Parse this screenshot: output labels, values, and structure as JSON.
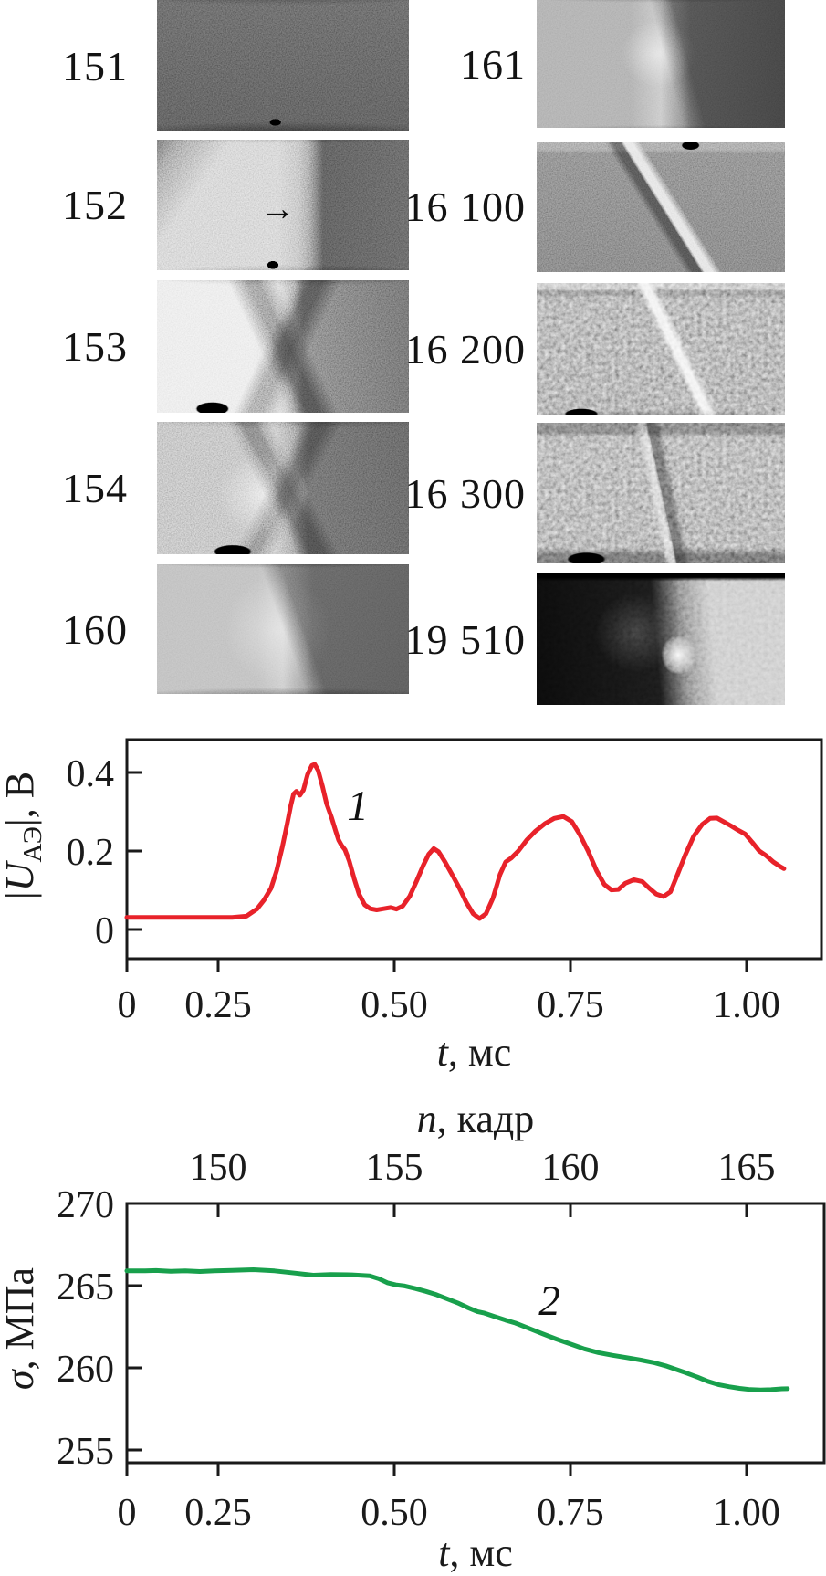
{
  "figure": {
    "frames": {
      "left": [
        {
          "label": "151"
        },
        {
          "label": "152"
        },
        {
          "label": "153"
        },
        {
          "label": "154"
        },
        {
          "label": "160"
        }
      ],
      "right": [
        {
          "label": "161"
        },
        {
          "label": "16 100"
        },
        {
          "label": "16 200"
        },
        {
          "label": "16 300"
        },
        {
          "label": "19 510"
        }
      ],
      "arrow_char": "→",
      "arrow_frame": "152"
    },
    "colors": {
      "ae_curve": "#e8222a",
      "stress_curve": "#18a04c",
      "axis": "#1a1a1a"
    }
  },
  "chart_data": [
    {
      "type": "line",
      "name": "acoustic-emission-signal",
      "curve_label": "1",
      "color": "#e8222a",
      "ylabel": "|U_АЭ|, В",
      "ylabel_parts": {
        "pre": "|",
        "var": "U",
        "sub": "АЭ",
        "post": "|, В"
      },
      "xlabel": "t, мс",
      "xlabel_parts": {
        "var": "t",
        "post": ", мс"
      },
      "xlim": [
        0,
        1.105
      ],
      "ylim": [
        -0.075,
        0.48
      ],
      "grid": false,
      "legend": "none",
      "xticks": [
        {
          "v": 0,
          "label": "0"
        },
        {
          "v": 0.25,
          "label": "0.25"
        },
        {
          "v": 0.5,
          "label": "0.50"
        },
        {
          "v": 0.75,
          "label": "0.75"
        },
        {
          "v": 1.0,
          "label": "1.00"
        }
      ],
      "yticks": [
        {
          "v": 0,
          "label": "0"
        },
        {
          "v": 0.2,
          "label": "0.2"
        },
        {
          "v": 0.4,
          "label": "0.4"
        }
      ],
      "points": [
        [
          0,
          0.031
        ],
        [
          0.05,
          0.031
        ],
        [
          0.1,
          0.031
        ],
        [
          0.15,
          0.031
        ],
        [
          0.2,
          0.031
        ],
        [
          0.25,
          0.031
        ],
        [
          0.27,
          0.031
        ],
        [
          0.29,
          0.034
        ],
        [
          0.305,
          0.052
        ],
        [
          0.315,
          0.075
        ],
        [
          0.325,
          0.105
        ],
        [
          0.333,
          0.15
        ],
        [
          0.341,
          0.21
        ],
        [
          0.348,
          0.27
        ],
        [
          0.353,
          0.315
        ],
        [
          0.357,
          0.345
        ],
        [
          0.361,
          0.352
        ],
        [
          0.366,
          0.342
        ],
        [
          0.371,
          0.355
        ],
        [
          0.377,
          0.395
        ],
        [
          0.383,
          0.418
        ],
        [
          0.387,
          0.421
        ],
        [
          0.392,
          0.405
        ],
        [
          0.398,
          0.365
        ],
        [
          0.404,
          0.32
        ],
        [
          0.411,
          0.285
        ],
        [
          0.417,
          0.25
        ],
        [
          0.421,
          0.228
        ],
        [
          0.425,
          0.215
        ],
        [
          0.43,
          0.203
        ],
        [
          0.436,
          0.175
        ],
        [
          0.443,
          0.13
        ],
        [
          0.45,
          0.09
        ],
        [
          0.458,
          0.063
        ],
        [
          0.466,
          0.053
        ],
        [
          0.475,
          0.05
        ],
        [
          0.485,
          0.053
        ],
        [
          0.495,
          0.056
        ],
        [
          0.503,
          0.052
        ],
        [
          0.512,
          0.06
        ],
        [
          0.522,
          0.085
        ],
        [
          0.532,
          0.125
        ],
        [
          0.541,
          0.163
        ],
        [
          0.549,
          0.192
        ],
        [
          0.556,
          0.206
        ],
        [
          0.563,
          0.198
        ],
        [
          0.572,
          0.172
        ],
        [
          0.582,
          0.14
        ],
        [
          0.592,
          0.107
        ],
        [
          0.602,
          0.07
        ],
        [
          0.612,
          0.04
        ],
        [
          0.621,
          0.028
        ],
        [
          0.63,
          0.04
        ],
        [
          0.64,
          0.08
        ],
        [
          0.65,
          0.14
        ],
        [
          0.658,
          0.172
        ],
        [
          0.666,
          0.182
        ],
        [
          0.676,
          0.2
        ],
        [
          0.688,
          0.228
        ],
        [
          0.7,
          0.25
        ],
        [
          0.714,
          0.27
        ],
        [
          0.727,
          0.283
        ],
        [
          0.74,
          0.288
        ],
        [
          0.752,
          0.275
        ],
        [
          0.763,
          0.243
        ],
        [
          0.775,
          0.2
        ],
        [
          0.787,
          0.15
        ],
        [
          0.798,
          0.115
        ],
        [
          0.808,
          0.101
        ],
        [
          0.818,
          0.102
        ],
        [
          0.828,
          0.118
        ],
        [
          0.84,
          0.127
        ],
        [
          0.852,
          0.122
        ],
        [
          0.862,
          0.105
        ],
        [
          0.872,
          0.09
        ],
        [
          0.882,
          0.084
        ],
        [
          0.892,
          0.096
        ],
        [
          0.902,
          0.14
        ],
        [
          0.913,
          0.19
        ],
        [
          0.925,
          0.238
        ],
        [
          0.937,
          0.268
        ],
        [
          0.948,
          0.283
        ],
        [
          0.958,
          0.284
        ],
        [
          0.968,
          0.274
        ],
        [
          0.978,
          0.264
        ],
        [
          0.988,
          0.253
        ],
        [
          0.998,
          0.243
        ],
        [
          1.008,
          0.222
        ],
        [
          1.018,
          0.2
        ],
        [
          1.028,
          0.188
        ],
        [
          1.038,
          0.172
        ],
        [
          1.048,
          0.16
        ],
        [
          1.053,
          0.155
        ]
      ]
    },
    {
      "type": "line",
      "name": "stress",
      "curve_label": "2",
      "color": "#18a04c",
      "ylabel": "σ, МПа",
      "ylabel_parts": {
        "var": "σ",
        "post": ", МПа"
      },
      "xlabel": "t, мс",
      "xlabel_parts": {
        "var": "t",
        "post": ", мс"
      },
      "top_axis": {
        "label": "n, кадр",
        "label_parts": {
          "var": "n",
          "post": ", кадр"
        },
        "ticks": [
          {
            "n": 150,
            "label": "150"
          },
          {
            "n": 155,
            "label": "155"
          },
          {
            "n": 160,
            "label": "160"
          },
          {
            "n": 165,
            "label": "165"
          }
        ]
      },
      "xlim": [
        0,
        1.105
      ],
      "ylim": [
        254.2,
        270
      ],
      "grid": false,
      "legend": "none",
      "xticks": [
        {
          "v": 0,
          "label": "0"
        },
        {
          "v": 0.25,
          "label": "0.25"
        },
        {
          "v": 0.5,
          "label": "0.50"
        },
        {
          "v": 0.75,
          "label": "0.75"
        },
        {
          "v": 1.0,
          "label": "1.00"
        }
      ],
      "yticks": [
        {
          "v": 255,
          "label": "255"
        },
        {
          "v": 260,
          "label": "260"
        },
        {
          "v": 265,
          "label": "265"
        },
        {
          "v": 270,
          "label": "270"
        }
      ],
      "points": [
        [
          0,
          265.9
        ],
        [
          0.05,
          265.9
        ],
        [
          0.08,
          265.92
        ],
        [
          0.12,
          265.88
        ],
        [
          0.16,
          265.9
        ],
        [
          0.2,
          265.86
        ],
        [
          0.24,
          265.9
        ],
        [
          0.27,
          265.93
        ],
        [
          0.3,
          265.97
        ],
        [
          0.33,
          265.9
        ],
        [
          0.36,
          265.76
        ],
        [
          0.385,
          265.64
        ],
        [
          0.41,
          265.68
        ],
        [
          0.44,
          265.66
        ],
        [
          0.465,
          265.6
        ],
        [
          0.478,
          265.42
        ],
        [
          0.49,
          265.18
        ],
        [
          0.502,
          265.05
        ],
        [
          0.515,
          264.98
        ],
        [
          0.53,
          264.82
        ],
        [
          0.545,
          264.65
        ],
        [
          0.56,
          264.45
        ],
        [
          0.575,
          264.2
        ],
        [
          0.59,
          263.95
        ],
        [
          0.605,
          263.65
        ],
        [
          0.618,
          263.42
        ],
        [
          0.628,
          263.33
        ],
        [
          0.642,
          263.12
        ],
        [
          0.658,
          262.9
        ],
        [
          0.672,
          262.72
        ],
        [
          0.69,
          262.42
        ],
        [
          0.71,
          262.08
        ],
        [
          0.73,
          261.75
        ],
        [
          0.75,
          261.45
        ],
        [
          0.77,
          261.15
        ],
        [
          0.79,
          260.92
        ],
        [
          0.81,
          260.76
        ],
        [
          0.83,
          260.62
        ],
        [
          0.85,
          260.47
        ],
        [
          0.87,
          260.3
        ],
        [
          0.885,
          260.12
        ],
        [
          0.9,
          259.9
        ],
        [
          0.915,
          259.68
        ],
        [
          0.93,
          259.44
        ],
        [
          0.945,
          259.18
        ],
        [
          0.96,
          258.98
        ],
        [
          0.975,
          258.85
        ],
        [
          0.99,
          258.75
        ],
        [
          1.005,
          258.68
        ],
        [
          1.02,
          258.65
        ],
        [
          1.035,
          258.67
        ],
        [
          1.05,
          258.72
        ],
        [
          1.058,
          258.73
        ]
      ]
    }
  ]
}
